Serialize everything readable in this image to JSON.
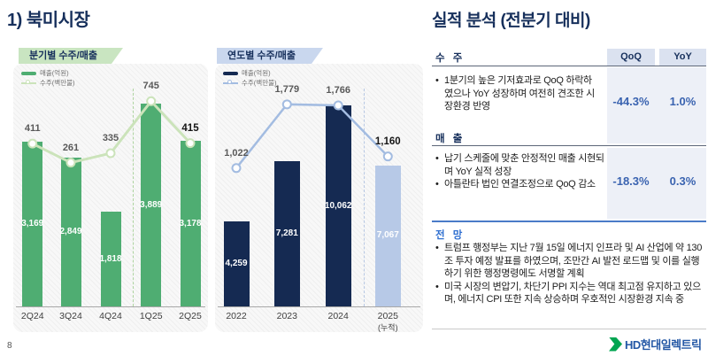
{
  "page": {
    "title": "1) 북미시장",
    "page_number": "8"
  },
  "colors": {
    "navy": "#17305c",
    "green_bar": "#4fad72",
    "green_line": "#cbe3ba",
    "navy_bar": "#152a52",
    "blue_bar_light": "#b7c9e7",
    "blue_line": "#a3bce1",
    "tag_green_bg": "#c9e5c1",
    "tag_blue_bg": "#c9d7ee",
    "value_blue": "#3a63b0",
    "accent_line_blue": "#4a7bc8",
    "bar_label_white": "#ffffff",
    "line_label_gray": "#595959",
    "logo_green": "#00a551",
    "logo_blue": "#2357a5"
  },
  "charts": [
    {
      "tag": "분기별 수주/매출",
      "legend": {
        "bar": "매출(억원)",
        "line": "수주(백만불)"
      },
      "chart_data": {
        "type": "bar",
        "categories": [
          "2Q24",
          "3Q24",
          "4Q24",
          "1Q25",
          "2Q25"
        ],
        "series": [
          {
            "name": "매출(억원)",
            "type": "bar",
            "values": [
              3169,
              2849,
              1818,
              3889,
              3178
            ]
          },
          {
            "name": "수주(백만불)",
            "type": "line",
            "values": [
              411,
              261,
              335,
              745,
              415
            ]
          }
        ],
        "bar_value_labels": [
          "3,169",
          "2,849",
          "1,818",
          "3,889",
          "3,178"
        ],
        "line_value_labels": [
          "411",
          "261",
          "335",
          "745",
          "415"
        ],
        "separator_between": [
          "4Q24",
          "1Q25"
        ]
      }
    },
    {
      "tag": "연도별 수주/매출",
      "legend": {
        "bar": "매출(억원)",
        "line": "수주(백만불)"
      },
      "chart_data": {
        "type": "bar",
        "categories": [
          "2022",
          "2023",
          "2024",
          "2025"
        ],
        "last_category_note": "(누적)",
        "series": [
          {
            "name": "매출(억원)",
            "type": "bar",
            "values": [
              4259,
              7281,
              10062,
              7067
            ]
          },
          {
            "name": "수주(백만불)",
            "type": "line",
            "values": [
              1022,
              1779,
              1766,
              1160
            ]
          }
        ],
        "bar_value_labels": [
          "4,259",
          "7,281",
          "10,062",
          "7,067"
        ],
        "line_value_labels": [
          "1,022",
          "1,779",
          "1,766",
          "1,160"
        ],
        "separator_between": [
          "2024",
          "2025"
        ]
      }
    }
  ],
  "analysis": {
    "title": "실적 분석 (전분기 대비)",
    "col_headers": [
      "QoQ",
      "YoY"
    ],
    "sections": [
      {
        "heading": "수 주",
        "bullets": [
          "1분기의 높은 기저효과로 QoQ 하락하였으나 YoY 성장하며 여전히 견조한 시장환경 반영"
        ],
        "qoq": "-44.3%",
        "yoy": "1.0%"
      },
      {
        "heading": "매 출",
        "bullets": [
          "납기 스케줄에 맞춘 안정적인 매출 시현되며 YoY 실적 성장",
          "아틀란타 법인 연결조정으로 QoQ 감소"
        ],
        "qoq": "-18.3%",
        "yoy": "0.3%"
      }
    ],
    "outlook": {
      "heading": "전 망",
      "bullets": [
        "트럼프 행정부는 지난 7월 15일 에너지 인프라 및 AI 산업에 약 130조 투자 예정 발표를 하였으며, 조만간 AI 발전 로드맵 및 이를 실행하기 위한 행정명령에도 서명할 계획",
        "미국 시장의 변압기, 차단기 PPI 지수는 역대 최고점 유지하고 있으며, 에너지 CPI 또한 지속 상승하며 우호적인 시장환경 지속 중"
      ]
    }
  },
  "logo": {
    "text": "HD현대일렉트릭"
  }
}
